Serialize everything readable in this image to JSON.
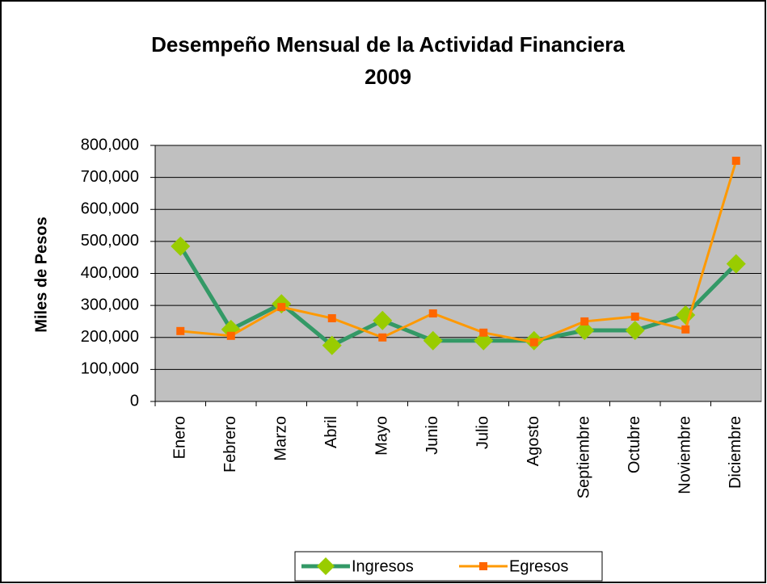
{
  "chart_data": {
    "type": "line",
    "title": [
      "Desempeño Mensual de la Actividad Financiera",
      "2009"
    ],
    "y_label": "Miles de Pesos",
    "categories": [
      "Enero",
      "Febrero",
      "Marzo",
      "Abril",
      "Mayo",
      "Junio",
      "Julio",
      "Agosto",
      "Septiembre",
      "Octubre",
      "Noviembre",
      "Diciembre"
    ],
    "series": [
      {
        "name": "Ingresos",
        "color": "#339966",
        "marker_color": "#99cc00",
        "marker": "diamond",
        "values": [
          485000,
          225000,
          305000,
          175000,
          253000,
          190000,
          190000,
          190000,
          222000,
          222000,
          270000,
          430000
        ]
      },
      {
        "name": "Egresos",
        "color": "#ff9900",
        "marker_color": "#ff6600",
        "marker": "square",
        "values": [
          220000,
          205000,
          295000,
          260000,
          200000,
          275000,
          215000,
          185000,
          250000,
          265000,
          225000,
          752000
        ]
      }
    ],
    "ylim": [
      0,
      800000
    ],
    "yticks": [
      0,
      {
        "value": 100000,
        "label": "100,000"
      },
      {
        "value": 200000,
        "label": "200,000"
      },
      {
        "value": 300000,
        "label": "300,000"
      },
      {
        "value": 400000,
        "label": "400,000"
      },
      {
        "value": 500000,
        "label": "500,000"
      },
      {
        "value": 600000,
        "label": "600,000"
      },
      {
        "value": 700000,
        "label": "700,000"
      },
      {
        "value": 800000,
        "label": "800,000"
      }
    ],
    "grid": true,
    "legend": "bottom",
    "plot_background": "#c0c0c0"
  }
}
